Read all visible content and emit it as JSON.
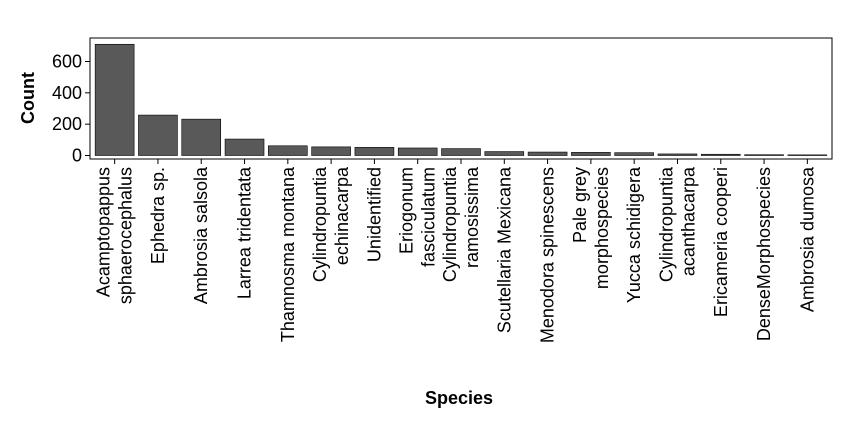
{
  "chart_data": {
    "type": "bar",
    "xlabel": "Species",
    "ylabel": "Count",
    "ylim": [
      0,
      750
    ],
    "yticks": [
      0,
      200,
      400,
      600
    ],
    "grid": false,
    "bar_color": "#595959",
    "bar_outline": "#000000",
    "categories": [
      [
        "Acamptopappus",
        "sphaerocephalus"
      ],
      [
        "Ephedra sp."
      ],
      [
        "Ambrosia salsola"
      ],
      [
        "Larrea tridentata"
      ],
      [
        "Thamnosma montana"
      ],
      [
        "Cylindropuntia",
        "echinacarpa"
      ],
      [
        "Unidentified"
      ],
      [
        "Eriogonum",
        "fasciculatum"
      ],
      [
        "Cylindropuntia",
        "ramosissima"
      ],
      [
        "Scutellaria Mexicana"
      ],
      [
        "Menodora spinescens"
      ],
      [
        "Pale grey",
        "morphospecies"
      ],
      [
        "Yucca schidigera"
      ],
      [
        "Cylindropuntia",
        "acanthacarpa"
      ],
      [
        "Ericameria cooperi"
      ],
      [
        "DenseMorphospecies"
      ],
      [
        "Ambrosia dumosa"
      ]
    ],
    "values": [
      710,
      258,
      232,
      105,
      62,
      55,
      52,
      48,
      44,
      25,
      22,
      20,
      18,
      10,
      8,
      5,
      4
    ]
  }
}
